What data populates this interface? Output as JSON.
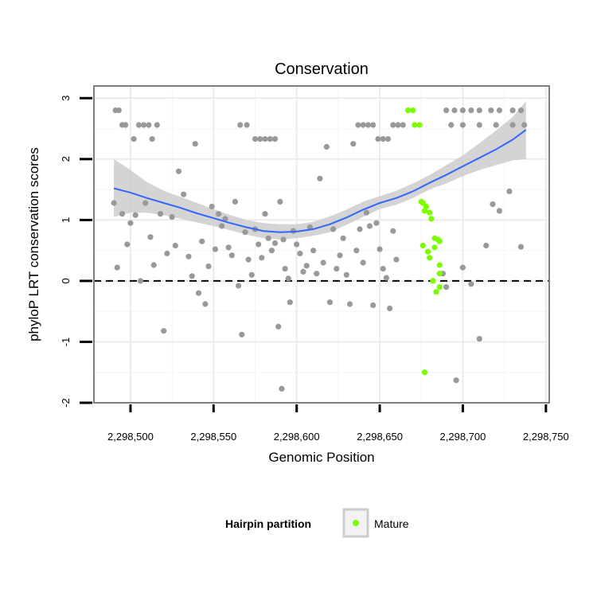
{
  "chart_data": {
    "type": "scatter",
    "title": "Conservation",
    "xlabel": "Genomic Position",
    "ylabel": "phyloP LRT conservation scores",
    "xlim": [
      2298478,
      2298752
    ],
    "ylim": [
      -2,
      3.2
    ],
    "x_ticks": [
      2298500,
      2298550,
      2298600,
      2298650,
      2298700,
      2298750
    ],
    "x_tick_labels": [
      "2,298,500",
      "2,298,550",
      "2,298,600",
      "2,298,650",
      "2,298,700",
      "2,298,750"
    ],
    "y_ticks": [
      -2,
      -1,
      0,
      1,
      2,
      3
    ],
    "y_tick_labels": [
      "-2",
      "-1",
      "0",
      "1",
      "2",
      "3"
    ],
    "grid": true,
    "reference_line": {
      "y": 0,
      "style": "dashed"
    },
    "legend": {
      "title": "Hairpin partition",
      "position": "bottom",
      "entries": [
        {
          "label": "Mature",
          "color": "#7cfc00"
        }
      ]
    },
    "colors": {
      "other": "#999999",
      "mature": "#7cfc00",
      "smooth": "#3366ff",
      "band": "#cccccc"
    },
    "series": [
      {
        "name": "Other",
        "points": [
          [
            2298491,
            2.8
          ],
          [
            2298493,
            2.8
          ],
          [
            2298495,
            2.56
          ],
          [
            2298497,
            2.56
          ],
          [
            2298502,
            2.33
          ],
          [
            2298505,
            2.56
          ],
          [
            2298508,
            2.56
          ],
          [
            2298511,
            2.56
          ],
          [
            2298513,
            2.33
          ],
          [
            2298516,
            2.56
          ],
          [
            2298566,
            2.56
          ],
          [
            2298570,
            2.56
          ],
          [
            2298575,
            2.33
          ],
          [
            2298578,
            2.33
          ],
          [
            2298581,
            2.33
          ],
          [
            2298584,
            2.33
          ],
          [
            2298587,
            2.33
          ],
          [
            2298637,
            2.56
          ],
          [
            2298640,
            2.56
          ],
          [
            2298643,
            2.56
          ],
          [
            2298646,
            2.56
          ],
          [
            2298649,
            2.33
          ],
          [
            2298652,
            2.33
          ],
          [
            2298655,
            2.33
          ],
          [
            2298658,
            2.56
          ],
          [
            2298661,
            2.56
          ],
          [
            2298664,
            2.56
          ],
          [
            2298690,
            2.8
          ],
          [
            2298695,
            2.8
          ],
          [
            2298700,
            2.8
          ],
          [
            2298705,
            2.8
          ],
          [
            2298710,
            2.8
          ],
          [
            2298717,
            2.8
          ],
          [
            2298722,
            2.8
          ],
          [
            2298730,
            2.8
          ],
          [
            2298735,
            2.8
          ],
          [
            2298693,
            2.56
          ],
          [
            2298700,
            2.56
          ],
          [
            2298710,
            2.56
          ],
          [
            2298720,
            2.56
          ],
          [
            2298730,
            2.56
          ],
          [
            2298737,
            2.56
          ],
          [
            2298490,
            1.28
          ],
          [
            2298492,
            0.22
          ],
          [
            2298495,
            1.1
          ],
          [
            2298498,
            0.6
          ],
          [
            2298500,
            0.95
          ],
          [
            2298503,
            1.08
          ],
          [
            2298506,
            0.0
          ],
          [
            2298509,
            1.28
          ],
          [
            2298512,
            0.72
          ],
          [
            2298514,
            0.26
          ],
          [
            2298518,
            1.1
          ],
          [
            2298520,
            -0.82
          ],
          [
            2298522,
            0.45
          ],
          [
            2298525,
            1.05
          ],
          [
            2298527,
            0.58
          ],
          [
            2298529,
            1.8
          ],
          [
            2298532,
            1.42
          ],
          [
            2298535,
            0.4
          ],
          [
            2298537,
            0.08
          ],
          [
            2298539,
            2.25
          ],
          [
            2298541,
            -0.2
          ],
          [
            2298543,
            0.65
          ],
          [
            2298545,
            -0.38
          ],
          [
            2298547,
            0.24
          ],
          [
            2298549,
            1.22
          ],
          [
            2298551,
            0.52
          ],
          [
            2298553,
            1.1
          ],
          [
            2298555,
            0.9
          ],
          [
            2298557,
            1.02
          ],
          [
            2298559,
            0.55
          ],
          [
            2298561,
            0.42
          ],
          [
            2298563,
            1.3
          ],
          [
            2298565,
            -0.08
          ],
          [
            2298567,
            -0.88
          ],
          [
            2298569,
            0.8
          ],
          [
            2298571,
            0.35
          ],
          [
            2298573,
            0.1
          ],
          [
            2298575,
            0.85
          ],
          [
            2298577,
            0.6
          ],
          [
            2298579,
            0.38
          ],
          [
            2298581,
            1.1
          ],
          [
            2298583,
            0.7
          ],
          [
            2298585,
            0.5
          ],
          [
            2298587,
            0.62
          ],
          [
            2298589,
            -0.75
          ],
          [
            2298590,
            1.3
          ],
          [
            2298591,
            -1.77
          ],
          [
            2298592,
            0.68
          ],
          [
            2298593,
            0.2
          ],
          [
            2298595,
            0.04
          ],
          [
            2298596,
            -0.35
          ],
          [
            2298598,
            0.82
          ],
          [
            2298600,
            0.6
          ],
          [
            2298602,
            0.45
          ],
          [
            2298604,
            0.15
          ],
          [
            2298606,
            0.25
          ],
          [
            2298608,
            0.88
          ],
          [
            2298610,
            0.5
          ],
          [
            2298612,
            0.12
          ],
          [
            2298614,
            1.68
          ],
          [
            2298616,
            0.3
          ],
          [
            2298618,
            2.2
          ],
          [
            2298620,
            -0.35
          ],
          [
            2298622,
            0.85
          ],
          [
            2298624,
            0.2
          ],
          [
            2298626,
            0.42
          ],
          [
            2298628,
            0.7
          ],
          [
            2298630,
            0.1
          ],
          [
            2298632,
            -0.38
          ],
          [
            2298634,
            2.25
          ],
          [
            2298636,
            0.5
          ],
          [
            2298638,
            0.85
          ],
          [
            2298640,
            0.3
          ],
          [
            2298642,
            1.12
          ],
          [
            2298644,
            0.9
          ],
          [
            2298646,
            -0.4
          ],
          [
            2298648,
            0.95
          ],
          [
            2298650,
            0.52
          ],
          [
            2298652,
            0.2
          ],
          [
            2298654,
            0.05
          ],
          [
            2298656,
            -0.45
          ],
          [
            2298658,
            0.82
          ],
          [
            2298660,
            0.35
          ],
          [
            2298688,
            0.12
          ],
          [
            2298690,
            -0.1
          ],
          [
            2298696,
            -1.63
          ],
          [
            2298700,
            0.22
          ],
          [
            2298705,
            -0.05
          ],
          [
            2298710,
            -0.95
          ],
          [
            2298714,
            0.58
          ],
          [
            2298718,
            1.26
          ],
          [
            2298722,
            1.15
          ],
          [
            2298728,
            1.47
          ],
          [
            2298735,
            0.56
          ]
        ]
      },
      {
        "name": "Mature",
        "points": [
          [
            2298667,
            2.8
          ],
          [
            2298670,
            2.8
          ],
          [
            2298671,
            2.56
          ],
          [
            2298674,
            2.56
          ],
          [
            2298675,
            1.3
          ],
          [
            2298676,
            1.28
          ],
          [
            2298677,
            1.15
          ],
          [
            2298678,
            1.22
          ],
          [
            2298680,
            1.12
          ],
          [
            2298681,
            1.02
          ],
          [
            2298676,
            0.58
          ],
          [
            2298679,
            0.48
          ],
          [
            2298680,
            0.38
          ],
          [
            2298683,
            0.7
          ],
          [
            2298685,
            0.68
          ],
          [
            2298686,
            0.65
          ],
          [
            2298683,
            0.55
          ],
          [
            2298686,
            0.26
          ],
          [
            2298686,
            0.12
          ],
          [
            2298682,
            0.0
          ],
          [
            2298686,
            -0.1
          ],
          [
            2298684,
            -0.18
          ],
          [
            2298677,
            -1.5
          ]
        ]
      }
    ],
    "smooth": {
      "x": [
        2298490,
        2298500,
        2298510,
        2298520,
        2298530,
        2298540,
        2298550,
        2298560,
        2298570,
        2298580,
        2298590,
        2298600,
        2298610,
        2298620,
        2298630,
        2298640,
        2298650,
        2298660,
        2298670,
        2298680,
        2298690,
        2298700,
        2298710,
        2298720,
        2298730,
        2298738
      ],
      "y": [
        1.52,
        1.45,
        1.36,
        1.28,
        1.2,
        1.11,
        1.03,
        0.95,
        0.88,
        0.82,
        0.8,
        0.81,
        0.85,
        0.93,
        1.04,
        1.17,
        1.28,
        1.36,
        1.47,
        1.61,
        1.74,
        1.88,
        2.02,
        2.16,
        2.32,
        2.48
      ],
      "lower": [
        1.05,
        1.12,
        1.12,
        1.08,
        1.02,
        0.96,
        0.9,
        0.83,
        0.76,
        0.7,
        0.68,
        0.7,
        0.74,
        0.8,
        0.92,
        1.05,
        1.18,
        1.25,
        1.36,
        1.5,
        1.6,
        1.72,
        1.82,
        1.9,
        1.98,
        2.0
      ],
      "upper": [
        2.0,
        1.82,
        1.62,
        1.48,
        1.38,
        1.28,
        1.18,
        1.08,
        1.0,
        0.95,
        0.93,
        0.93,
        0.97,
        1.06,
        1.17,
        1.3,
        1.39,
        1.48,
        1.6,
        1.74,
        1.9,
        2.06,
        2.26,
        2.47,
        2.69,
        2.95
      ]
    }
  }
}
